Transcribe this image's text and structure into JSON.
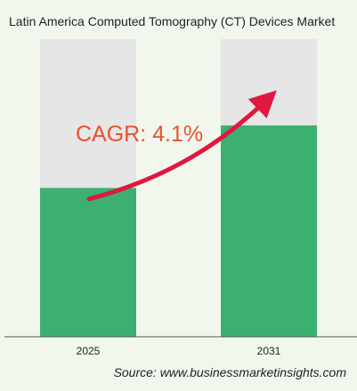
{
  "title": "Latin America Computed Tomography (CT) Devices Market",
  "annotation": "CAGR: 4.1%",
  "source": "Source: www.businessmarketinsights.com",
  "colors": {
    "background": "#f2f7ee",
    "bar_fill": "#3bb071",
    "bar_track": "#e6e6e6",
    "arrow": "#e0173f",
    "annotation": "#e8522d"
  },
  "chart_data": {
    "type": "bar",
    "categories": [
      "2025",
      "2031"
    ],
    "series": [
      {
        "values": [
          1.0,
          1.42
        ]
      }
    ],
    "ylim": [
      0,
      2.0
    ],
    "grid": false,
    "legend": "none",
    "annotations": [
      "CAGR: 4.1%"
    ]
  }
}
